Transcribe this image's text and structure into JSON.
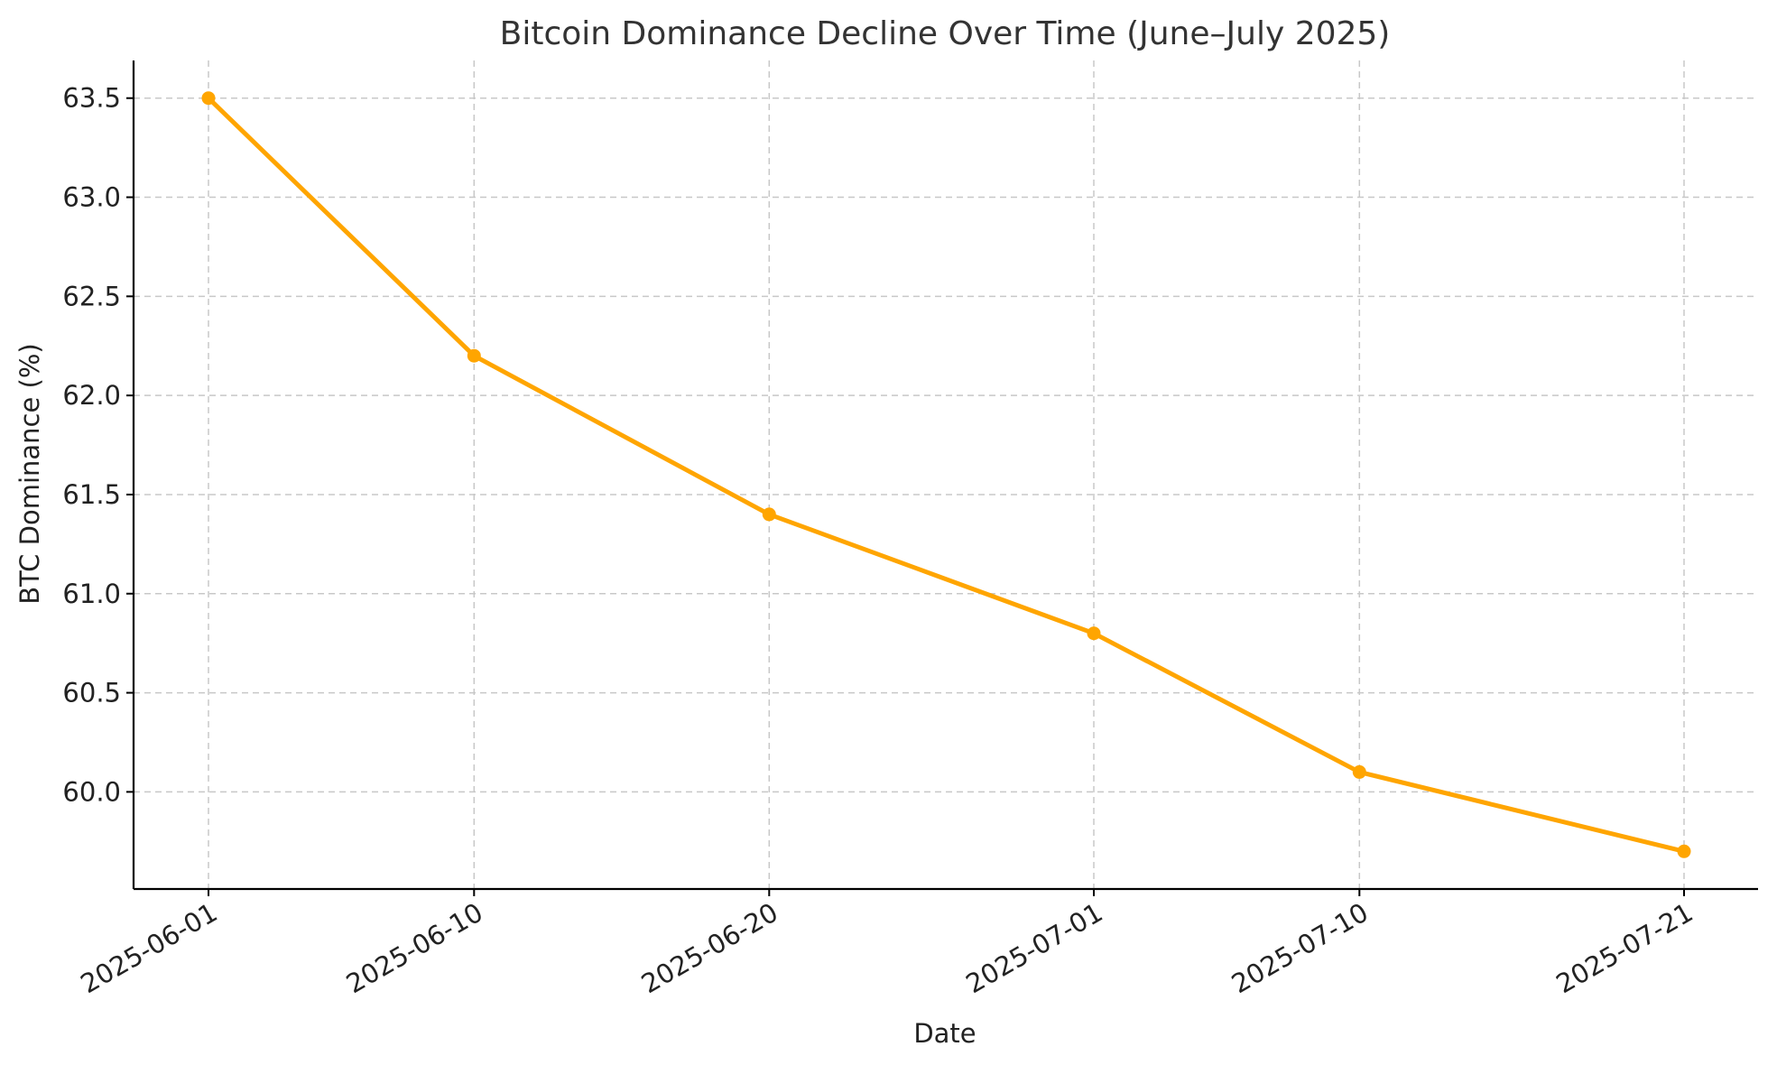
{
  "chart_data": {
    "type": "line",
    "title": "Bitcoin Dominance Decline Over Time (June–July 2025)",
    "xlabel": "Date",
    "ylabel": "BTC Dominance (%)",
    "x": [
      "2025-06-01",
      "2025-06-10",
      "2025-06-20",
      "2025-07-01",
      "2025-07-10",
      "2025-07-21"
    ],
    "xticks": [
      "2025-06-01",
      "2025-06-10",
      "2025-06-20",
      "2025-07-01",
      "2025-07-10",
      "2025-07-21"
    ],
    "series": [
      {
        "values": [
          63.5,
          62.2,
          61.4,
          60.8,
          60.1,
          59.7
        ],
        "color": "#FFA500",
        "marker": "circle"
      }
    ],
    "yticks": [
      60.0,
      60.5,
      61.0,
      61.5,
      62.0,
      62.5,
      63.0,
      63.5
    ],
    "ytick_labels": [
      "60.0",
      "60.5",
      "61.0",
      "61.5",
      "62.0",
      "62.5",
      "63.0",
      "63.5"
    ],
    "ylim": [
      59.51,
      63.69
    ],
    "grid": true,
    "legend": false
  }
}
